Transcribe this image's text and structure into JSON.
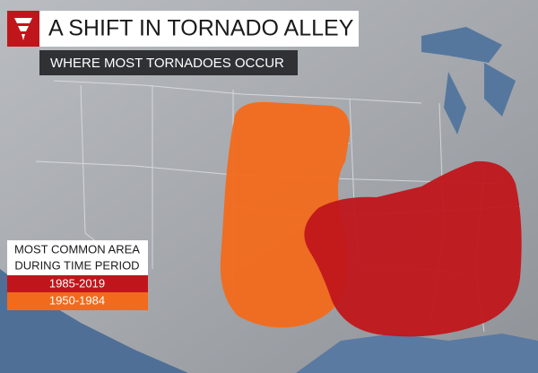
{
  "header": {
    "title": "A SHIFT IN TORNADO ALLEY",
    "subtitle": "WHERE MOST TORNADOES OCCUR"
  },
  "legend": {
    "title": [
      "MOST COMMON AREA",
      "DURING TIME PERIOD"
    ],
    "items": [
      {
        "label": "1985-2019",
        "color": "#c0161b"
      },
      {
        "label": "1950-1984",
        "color": "#f26a1b"
      }
    ]
  }
}
